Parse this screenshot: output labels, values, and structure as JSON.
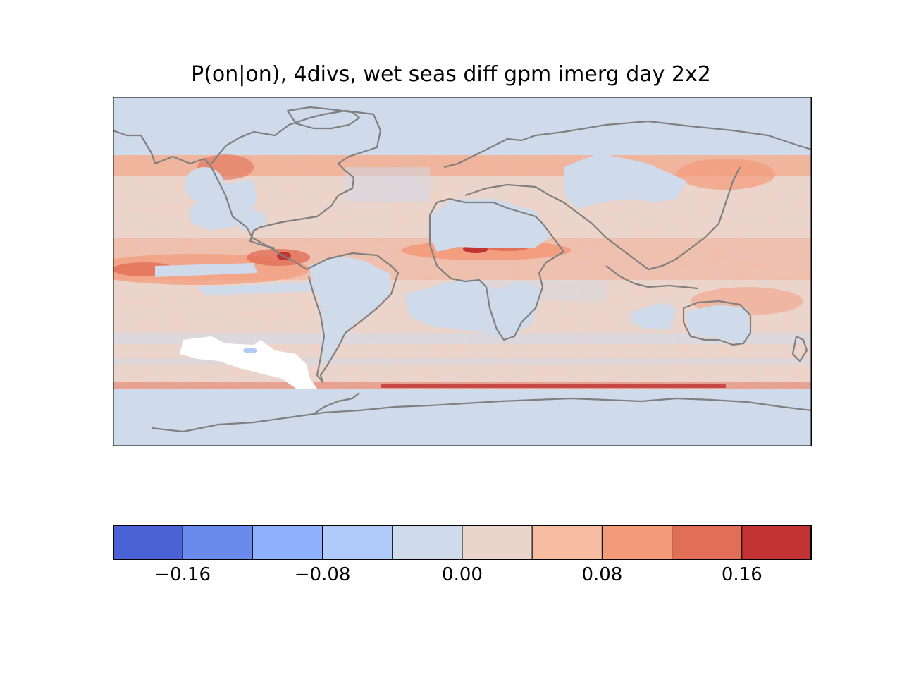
{
  "title": "P(on|on), 4divs, wet seas diff gpm imerg day 2x2",
  "colorbar": {
    "colors": [
      "#4a62d6",
      "#6a8bee",
      "#8eb0fd",
      "#b0caf9",
      "#cfdaea",
      "#ead5cc",
      "#f7bda3",
      "#f39a79",
      "#e16f57",
      "#c23333"
    ],
    "levels": [
      -0.2,
      -0.16,
      -0.12,
      -0.08,
      -0.04,
      0.0,
      0.04,
      0.08,
      0.12,
      0.16,
      0.2
    ],
    "tick_values": [
      -0.16,
      -0.08,
      0.0,
      0.08,
      0.16
    ],
    "tick_labels": [
      "−0.16",
      "−0.08",
      "0.00",
      "0.08",
      "0.16"
    ]
  },
  "map": {
    "projection": "PlateCarree",
    "extent_lon": [
      -180,
      180
    ],
    "extent_lat": [
      -90,
      90
    ],
    "data_lat_range": [
      -60,
      60
    ],
    "background_color": "#cfdaea",
    "coastline_color": "#808080",
    "highlight_regions": [
      "Tropical Atlantic / West Africa band",
      "East Pacific ITCZ",
      "Northwest Pacific",
      "Southern Ocean band near 60S",
      "South Pacific white patch (negative values)"
    ]
  }
}
